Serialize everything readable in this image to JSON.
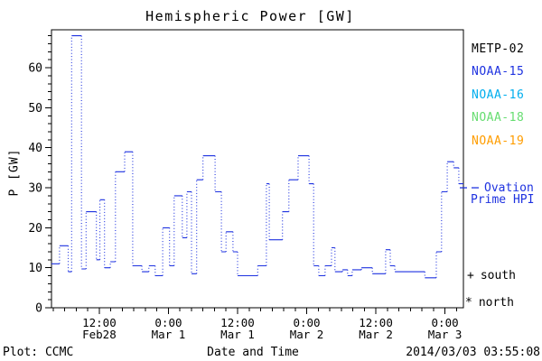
{
  "title": "Hemispheric Power [GW]",
  "y_axis_title": "P [GW]",
  "colors": {
    "background": "#ffffff",
    "frame": "#000000",
    "line_blue": "#1e32e0",
    "noaa16_cyan": "#00aeee",
    "noaa18_green": "#66dd70",
    "noaa19_orange": "#ff9d00"
  },
  "satellite_legend": [
    {
      "label": "METP-02",
      "color": "#000000"
    },
    {
      "label": "NOAA-15",
      "color": "#1e32e0"
    },
    {
      "label": "NOAA-16",
      "color": "#00aeee"
    },
    {
      "label": "NOAA-18",
      "color": "#66dd70"
    },
    {
      "label": "NOAA-19",
      "color": "#ff9d00"
    }
  ],
  "line_legend": {
    "label_line1": "Ovation",
    "label_line2": "Prime HPI",
    "color": "#1e32e0",
    "marker_value_gw": 30
  },
  "marker_legend": [
    {
      "symbol": "+",
      "label": "south"
    },
    {
      "symbol": "*",
      "label": "north"
    }
  ],
  "footer": {
    "left": "Plot: CCMC",
    "center_xlabel": "Date and Time",
    "right_timestamp": "2014/03/03 03:55:08"
  },
  "chart_data": {
    "type": "line",
    "title": "Hemispheric Power [GW]",
    "xlabel": "Date and Time",
    "ylabel": "P [GW]",
    "ylim": [
      0,
      69.5
    ],
    "y_major_ticks": [
      0,
      10,
      20,
      30,
      40,
      50,
      60
    ],
    "y_minor_step": 2,
    "x_hours_domain": [
      3.7,
      75.2
    ],
    "x_hours_epoch": "hours since 2014-02-28 00:00 UT",
    "x_major_ticks": [
      {
        "hour": 12,
        "time": "12:00",
        "date": "Feb28"
      },
      {
        "hour": 24,
        "time": "0:00",
        "date": "Mar 1"
      },
      {
        "hour": 36,
        "time": "12:00",
        "date": "Mar 1"
      },
      {
        "hour": 48,
        "time": "0:00",
        "date": "Mar 2"
      },
      {
        "hour": 60,
        "time": "12:00",
        "date": "Mar 2"
      },
      {
        "hour": 72,
        "time": "0:00",
        "date": "Mar 3"
      }
    ],
    "x_minor_step_hours": 2,
    "grid": false,
    "legend_position": "right-outside",
    "series": [
      {
        "name": "Ovation Prime HPI",
        "color": "#1e32e0",
        "style": "stepped-dotted",
        "points_hour_gw": [
          [
            3.7,
            11
          ],
          [
            5.1,
            15.5
          ],
          [
            6.6,
            9
          ],
          [
            7.2,
            68
          ],
          [
            8.9,
            9.7
          ],
          [
            9.7,
            24
          ],
          [
            11.5,
            12
          ],
          [
            12.1,
            27
          ],
          [
            12.9,
            10
          ],
          [
            13.9,
            11.5
          ],
          [
            14.8,
            34
          ],
          [
            16.4,
            39
          ],
          [
            17.8,
            10.5
          ],
          [
            19.4,
            9
          ],
          [
            20.6,
            10.5
          ],
          [
            21.7,
            8
          ],
          [
            23.0,
            20
          ],
          [
            24.2,
            10.5
          ],
          [
            25.0,
            28
          ],
          [
            26.4,
            17.5
          ],
          [
            27.2,
            29
          ],
          [
            28.0,
            8.5
          ],
          [
            28.9,
            32
          ],
          [
            30.0,
            38
          ],
          [
            32.1,
            29
          ],
          [
            33.2,
            14
          ],
          [
            34.0,
            19
          ],
          [
            35.2,
            14
          ],
          [
            36.0,
            8
          ],
          [
            39.5,
            10.5
          ],
          [
            41.0,
            31
          ],
          [
            41.5,
            17
          ],
          [
            43.8,
            24
          ],
          [
            44.9,
            32
          ],
          [
            46.5,
            38
          ],
          [
            48.4,
            31
          ],
          [
            49.2,
            10.5
          ],
          [
            50.1,
            8
          ],
          [
            51.2,
            10.5
          ],
          [
            52.3,
            15
          ],
          [
            52.9,
            9
          ],
          [
            54.2,
            9.5
          ],
          [
            55.1,
            8
          ],
          [
            55.9,
            9.5
          ],
          [
            57.5,
            10
          ],
          [
            59.4,
            8.5
          ],
          [
            61.7,
            14.5
          ],
          [
            62.5,
            10.5
          ],
          [
            63.3,
            9
          ],
          [
            68.5,
            7.5
          ],
          [
            70.5,
            14
          ],
          [
            71.4,
            29
          ],
          [
            72.4,
            36.5
          ],
          [
            73.5,
            35
          ],
          [
            74.4,
            31
          ],
          [
            75.2,
            31
          ]
        ]
      }
    ]
  }
}
